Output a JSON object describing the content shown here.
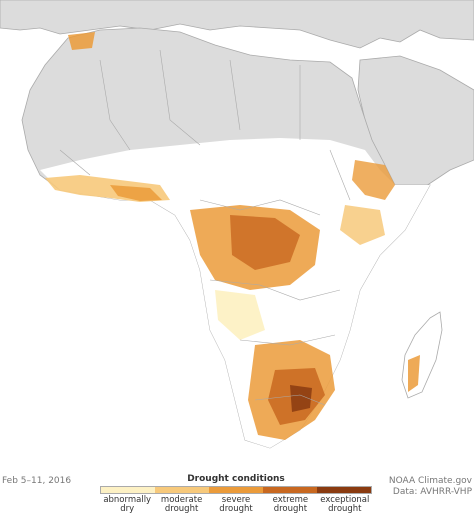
{
  "map": {
    "region": "Africa",
    "legend": {
      "title": "Drought conditions",
      "classes": [
        {
          "line1": "abnormally",
          "line2": "dry",
          "color": "#fdf1c4"
        },
        {
          "line1": "moderate",
          "line2": "drought",
          "color": "#f7c97b"
        },
        {
          "line1": "severe",
          "line2": "drought",
          "color": "#eb9b3a"
        },
        {
          "line1": "extreme",
          "line2": "drought",
          "color": "#c86820"
        },
        {
          "line1": "exceptional",
          "line2": "drought",
          "color": "#8a3b10"
        }
      ]
    },
    "date": "Feb 5–11, 2016",
    "credit": {
      "source": "NOAA Climate.gov",
      "data": "Data: AVHRR-VHP"
    },
    "colors": {
      "land": "#dcdcdc",
      "vegetated_land": "#ffffff",
      "border": "#aaaaaa"
    }
  }
}
